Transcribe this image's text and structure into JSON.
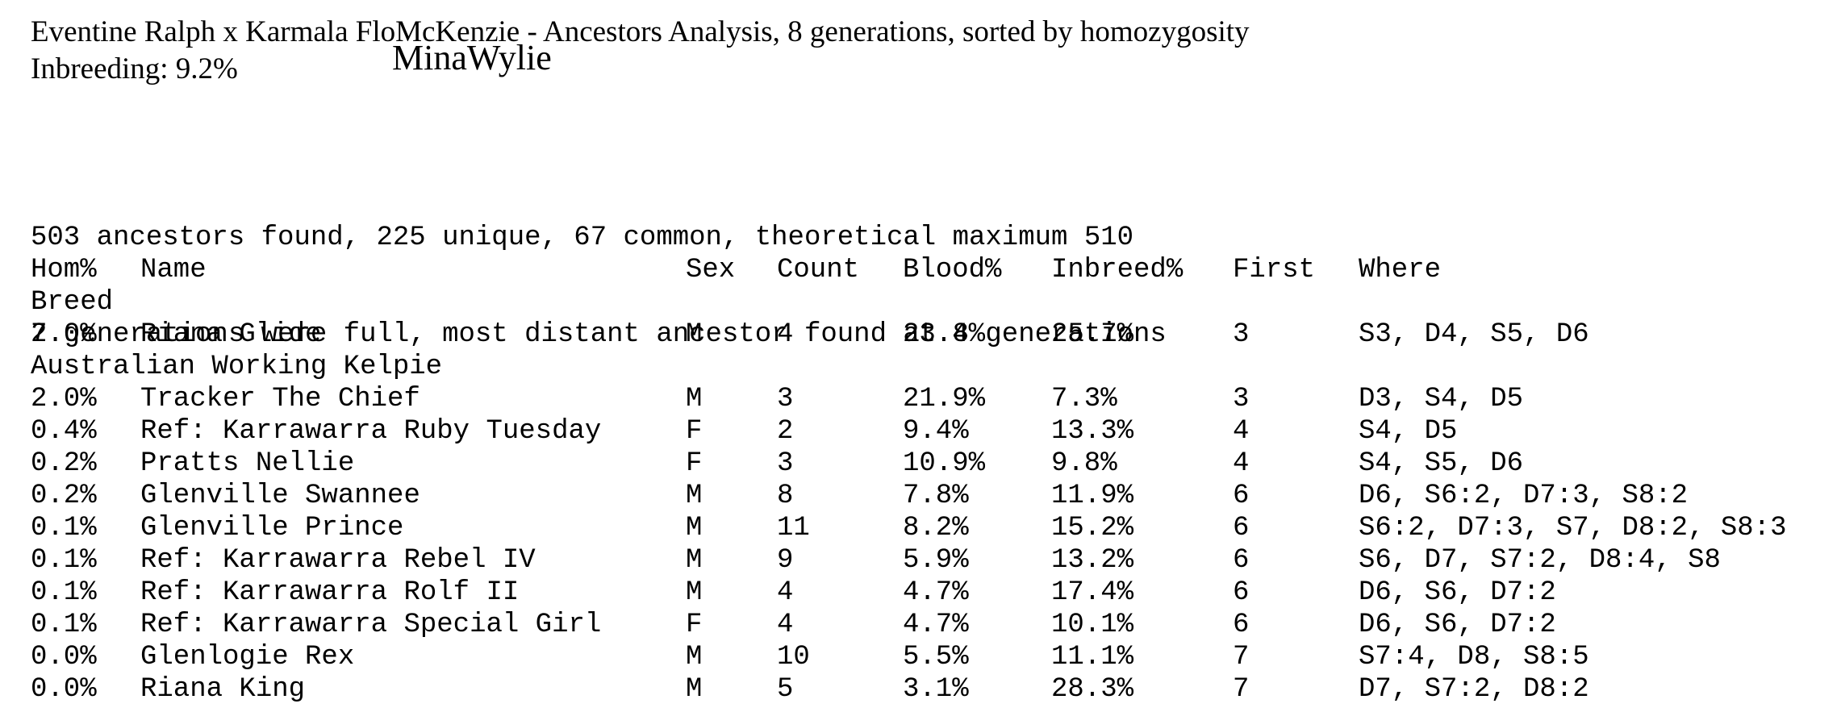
{
  "header": {
    "title": "Eventine Ralph x Karmala FloMcKenzie - Ancestors Analysis, 8 generations, sorted by homozygosity",
    "inbreeding": "Inbreeding: 9.2%",
    "overlap_name": "MinaWylie"
  },
  "summary": {
    "line1": "503 ancestors found, 225 unique, 67 common, theoretical maximum 510",
    "line2": "7 generations were full, most distant ancestor found at 8 generations"
  },
  "table": {
    "headers": {
      "hom": "Hom%",
      "name": "Name",
      "sex": "Sex",
      "count": "Count",
      "blood": "Blood%",
      "inbreed": "Inbreed%",
      "first": "First",
      "where": "Where"
    },
    "group_header": "Breed",
    "groups": [
      {
        "rows": [
          {
            "hom": "2.0%",
            "name": "Riana Glide",
            "sex": "M",
            "count": "4",
            "blood": "23.4%",
            "inbreed": "25.7%",
            "first": "3",
            "where": "S3, D4, S5, D6"
          }
        ]
      },
      {
        "label": "Australian Working Kelpie",
        "rows": [
          {
            "hom": "2.0%",
            "name": "Tracker The Chief",
            "sex": "M",
            "count": "3",
            "blood": "21.9%",
            "inbreed": "7.3%",
            "first": "3",
            "where": "D3, S4, D5"
          },
          {
            "hom": "0.4%",
            "name": "Ref: Karrawarra Ruby Tuesday",
            "sex": "F",
            "count": "2",
            "blood": "9.4%",
            "inbreed": "13.3%",
            "first": "4",
            "where": "S4, D5"
          },
          {
            "hom": "0.2%",
            "name": "Pratts Nellie",
            "sex": "F",
            "count": "3",
            "blood": "10.9%",
            "inbreed": "9.8%",
            "first": "4",
            "where": "S4, S5, D6"
          },
          {
            "hom": "0.2%",
            "name": "Glenville Swannee",
            "sex": "M",
            "count": "8",
            "blood": "7.8%",
            "inbreed": "11.9%",
            "first": "6",
            "where": "D6, S6:2, D7:3, S8:2"
          },
          {
            "hom": "0.1%",
            "name": "Glenville Prince",
            "sex": "M",
            "count": "11",
            "blood": "8.2%",
            "inbreed": "15.2%",
            "first": "6",
            "where": "S6:2, D7:3, S7, D8:2, S8:3"
          },
          {
            "hom": "0.1%",
            "name": "Ref: Karrawarra Rebel IV",
            "sex": "M",
            "count": "9",
            "blood": "5.9%",
            "inbreed": "13.2%",
            "first": "6",
            "where": "S6, D7, S7:2, D8:4, S8"
          },
          {
            "hom": "0.1%",
            "name": "Ref: Karrawarra Rolf II",
            "sex": "M",
            "count": "4",
            "blood": "4.7%",
            "inbreed": "17.4%",
            "first": "6",
            "where": "D6, S6, D7:2"
          },
          {
            "hom": "0.1%",
            "name": "Ref: Karrawarra Special Girl",
            "sex": "F",
            "count": "4",
            "blood": "4.7%",
            "inbreed": "10.1%",
            "first": "6",
            "where": "D6, S6, D7:2"
          },
          {
            "hom": "0.0%",
            "name": "Glenlogie Rex",
            "sex": "M",
            "count": "10",
            "blood": "5.5%",
            "inbreed": "11.1%",
            "first": "7",
            "where": "S7:4, D8, S8:5"
          },
          {
            "hom": "0.0%",
            "name": "Riana King",
            "sex": "M",
            "count": "5",
            "blood": "3.1%",
            "inbreed": "28.3%",
            "first": "7",
            "where": "D7, S7:2, D8:2"
          }
        ]
      }
    ]
  }
}
